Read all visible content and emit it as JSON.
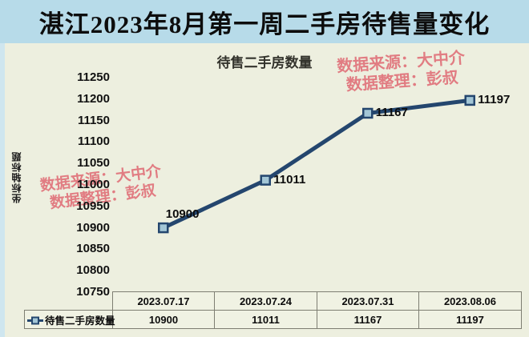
{
  "window": {
    "title": "湛江2023年8月第一周二手房待售量变化"
  },
  "chart": {
    "title": "待售二手房数量",
    "y_axis_title": "坐标轴标题",
    "watermark": {
      "line1": "数据来源：大中介",
      "line2": "数据整理：彭叔"
    }
  },
  "chart_data": {
    "type": "line",
    "title": "待售二手房数量",
    "categories": [
      "2023.07.17",
      "2023.07.24",
      "2023.07.31",
      "2023.08.06"
    ],
    "series": [
      {
        "name": "待售二手房数量",
        "values": [
          10900,
          11011,
          11167,
          11197
        ]
      }
    ],
    "data_labels": [
      "10900",
      "11011",
      "11167",
      "11197"
    ],
    "ylabel": "坐标轴标题",
    "ylim": [
      10750,
      11250
    ],
    "ytick_step": 50,
    "grid": false,
    "legend_position": "bottom-table",
    "line_color": "#24466e",
    "marker_fill": "#a3c6d6"
  },
  "table": {
    "legend_label": "待售二手房数量",
    "columns": [
      "2023.07.17",
      "2023.07.24",
      "2023.07.31",
      "2023.08.06"
    ],
    "values": [
      "10900",
      "11011",
      "11167",
      "11197"
    ]
  },
  "colors": {
    "header_bg": "#b7dbe9",
    "chart_bg": "#edefdf",
    "line": "#24466e",
    "marker_fill": "#a3c6d6",
    "watermark": "#e0737b",
    "table_border": "#7e7e72",
    "table_cell_bg": "#f0f2e3"
  }
}
